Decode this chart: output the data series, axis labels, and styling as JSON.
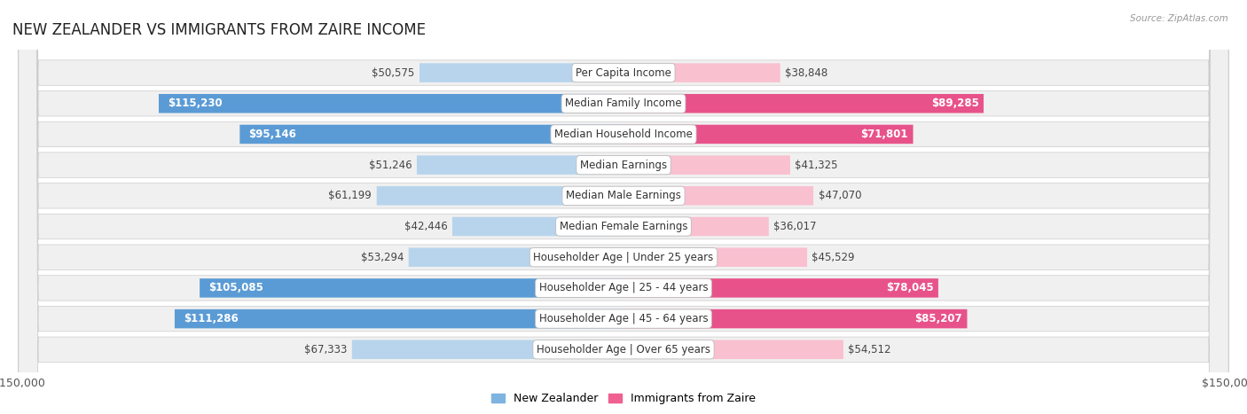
{
  "title": "NEW ZEALANDER VS IMMIGRANTS FROM ZAIRE INCOME",
  "source": "Source: ZipAtlas.com",
  "categories": [
    "Per Capita Income",
    "Median Family Income",
    "Median Household Income",
    "Median Earnings",
    "Median Male Earnings",
    "Median Female Earnings",
    "Householder Age | Under 25 years",
    "Householder Age | 25 - 44 years",
    "Householder Age | 45 - 64 years",
    "Householder Age | Over 65 years"
  ],
  "nz_values": [
    50575,
    115230,
    95146,
    51246,
    61199,
    42446,
    53294,
    105085,
    111286,
    67333
  ],
  "imm_values": [
    38848,
    89285,
    71801,
    41325,
    47070,
    36017,
    45529,
    78045,
    85207,
    54512
  ],
  "nz_labels": [
    "$50,575",
    "$115,230",
    "$95,146",
    "$51,246",
    "$61,199",
    "$42,446",
    "$53,294",
    "$105,085",
    "$111,286",
    "$67,333"
  ],
  "imm_labels": [
    "$38,848",
    "$89,285",
    "$71,801",
    "$41,325",
    "$47,070",
    "$36,017",
    "$45,529",
    "$78,045",
    "$85,207",
    "$54,512"
  ],
  "max_value": 150000,
  "nz_color_light": "#b8d4ed",
  "nz_color_dark": "#5b9bd5",
  "imm_color_light": "#f9c0d0",
  "imm_color_dark": "#e8528a",
  "bar_height": 0.62,
  "bg_color": "#ffffff",
  "row_bg": "#f0f0f0",
  "label_fontsize": 8.5,
  "title_fontsize": 12,
  "axis_label_fontsize": 9,
  "legend_fontsize": 9,
  "inside_threshold_nz": 80000,
  "inside_threshold_imm": 65000,
  "legend_nz_color": "#7fb3e0",
  "legend_imm_color": "#f06090"
}
